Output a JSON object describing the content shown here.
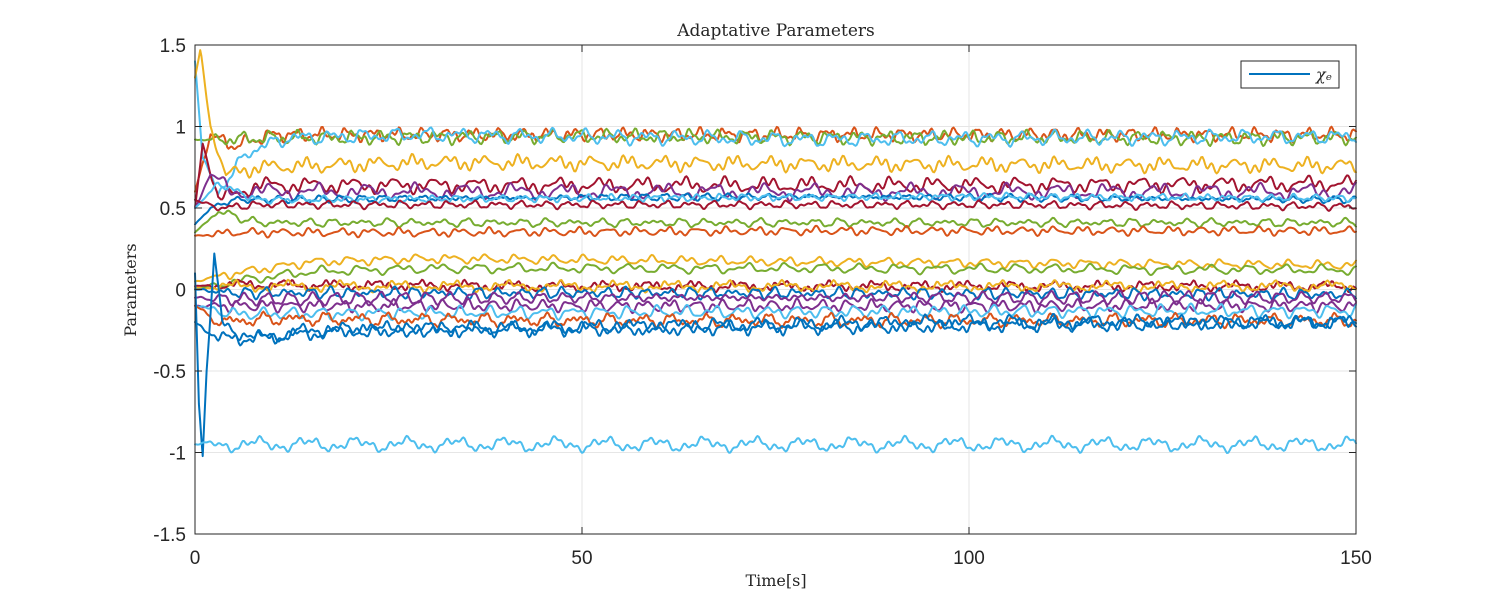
{
  "chart_data": {
    "type": "line",
    "title": "Adaptative Parameters",
    "xlabel": "Time[s]",
    "ylabel": "Parameters",
    "xlim": [
      0,
      150
    ],
    "ylim": [
      -1.5,
      1.5
    ],
    "xticks": [
      0,
      50,
      100,
      150
    ],
    "xtick_labels": [
      "0",
      "50",
      "100",
      "150"
    ],
    "yticks": [
      -1.5,
      -1,
      -0.5,
      0,
      0.5,
      1,
      1.5
    ],
    "ytick_labels": [
      "-1.5",
      "-1",
      "-0.5",
      "0",
      "0.5",
      "1",
      "1.5"
    ],
    "grid": true,
    "legend": {
      "placement": "top-right",
      "entries": [
        {
          "label": "χₑ",
          "color": "#0072BD"
        }
      ]
    },
    "series": [
      {
        "color": "#D95319",
        "values": [
          [
            0,
            0.6
          ],
          [
            2,
            0.95
          ],
          [
            5,
            0.88
          ],
          [
            10,
            0.95
          ],
          [
            20,
            0.95
          ],
          [
            50,
            0.95
          ],
          [
            80,
            0.95
          ],
          [
            100,
            0.95
          ],
          [
            130,
            0.95
          ],
          [
            150,
            0.95
          ]
        ]
      },
      {
        "color": "#77AC30",
        "values": [
          [
            0,
            0.92
          ],
          [
            3,
            0.92
          ],
          [
            10,
            0.93
          ],
          [
            50,
            0.94
          ],
          [
            100,
            0.93
          ],
          [
            150,
            0.93
          ]
        ]
      },
      {
        "color": "#4DBEEE",
        "values": [
          [
            0,
            1.4
          ],
          [
            1,
            0.8
          ],
          [
            3,
            0.6
          ],
          [
            7,
            0.85
          ],
          [
            12,
            0.93
          ],
          [
            30,
            0.95
          ],
          [
            80,
            0.92
          ],
          [
            150,
            0.94
          ]
        ]
      },
      {
        "color": "#EDB120",
        "values": [
          [
            0,
            1.3
          ],
          [
            0.7,
            1.47
          ],
          [
            2,
            1.0
          ],
          [
            4,
            0.7
          ],
          [
            8,
            0.75
          ],
          [
            30,
            0.78
          ],
          [
            80,
            0.77
          ],
          [
            150,
            0.76
          ]
        ]
      },
      {
        "color": "#A2142F",
        "values": [
          [
            0,
            0.5
          ],
          [
            1,
            0.9
          ],
          [
            3,
            0.55
          ],
          [
            8,
            0.64
          ],
          [
            50,
            0.64
          ],
          [
            100,
            0.64
          ],
          [
            150,
            0.65
          ]
        ]
      },
      {
        "color": "#7E2F8E",
        "values": [
          [
            0,
            0.5
          ],
          [
            2,
            0.7
          ],
          [
            5,
            0.6
          ],
          [
            10,
            0.6
          ],
          [
            50,
            0.6
          ],
          [
            100,
            0.6
          ],
          [
            150,
            0.6
          ]
        ]
      },
      {
        "color": "#0072BD",
        "values": [
          [
            0,
            0.4
          ],
          [
            2,
            0.5
          ],
          [
            5,
            0.55
          ],
          [
            30,
            0.56
          ],
          [
            80,
            0.57
          ],
          [
            150,
            0.55
          ]
        ]
      },
      {
        "color": "#4DBEEE",
        "values": [
          [
            0,
            0.5
          ],
          [
            3,
            0.65
          ],
          [
            8,
            0.55
          ],
          [
            50,
            0.56
          ],
          [
            100,
            0.57
          ],
          [
            150,
            0.56
          ]
        ]
      },
      {
        "color": "#A2142F",
        "values": [
          [
            0,
            0.55
          ],
          [
            3,
            0.5
          ],
          [
            8,
            0.52
          ],
          [
            50,
            0.52
          ],
          [
            100,
            0.52
          ],
          [
            150,
            0.51
          ]
        ]
      },
      {
        "color": "#77AC30",
        "values": [
          [
            0,
            0.35
          ],
          [
            3,
            0.48
          ],
          [
            8,
            0.41
          ],
          [
            50,
            0.41
          ],
          [
            100,
            0.41
          ],
          [
            150,
            0.41
          ]
        ]
      },
      {
        "color": "#D95319",
        "values": [
          [
            0,
            0.33
          ],
          [
            5,
            0.35
          ],
          [
            30,
            0.35
          ],
          [
            80,
            0.36
          ],
          [
            150,
            0.36
          ]
        ]
      },
      {
        "color": "#EDB120",
        "values": [
          [
            0,
            0.05
          ],
          [
            5,
            0.1
          ],
          [
            15,
            0.17
          ],
          [
            30,
            0.19
          ],
          [
            80,
            0.17
          ],
          [
            150,
            0.15
          ]
        ]
      },
      {
        "color": "#77AC30",
        "values": [
          [
            0,
            0.0
          ],
          [
            5,
            0.05
          ],
          [
            15,
            0.11
          ],
          [
            30,
            0.13
          ],
          [
            80,
            0.13
          ],
          [
            150,
            0.12
          ]
        ]
      },
      {
        "color": "#A2142F",
        "values": [
          [
            0,
            0.02
          ],
          [
            5,
            0.03
          ],
          [
            50,
            0.02
          ],
          [
            100,
            0.02
          ],
          [
            150,
            0.02
          ]
        ]
      },
      {
        "color": "#EDB120",
        "values": [
          [
            0,
            0.01
          ],
          [
            5,
            0.02
          ],
          [
            50,
            0.02
          ],
          [
            150,
            0.02
          ]
        ]
      },
      {
        "color": "#0072BD",
        "values": [
          [
            0,
            0.0
          ],
          [
            5,
            -0.02
          ],
          [
            50,
            -0.02
          ],
          [
            150,
            -0.03
          ]
        ]
      },
      {
        "color": "#7E2F8E",
        "values": [
          [
            0,
            -0.05
          ],
          [
            5,
            -0.06
          ],
          [
            50,
            -0.05
          ],
          [
            150,
            -0.05
          ]
        ]
      },
      {
        "color": "#7E2F8E",
        "values": [
          [
            0,
            -0.1
          ],
          [
            5,
            -0.1
          ],
          [
            50,
            -0.1
          ],
          [
            150,
            -0.1
          ]
        ]
      },
      {
        "color": "#4DBEEE",
        "values": [
          [
            0,
            -0.1
          ],
          [
            5,
            -0.15
          ],
          [
            50,
            -0.14
          ],
          [
            150,
            -0.13
          ]
        ]
      },
      {
        "color": "#D95319",
        "values": [
          [
            0,
            -0.1
          ],
          [
            3,
            -0.2
          ],
          [
            10,
            -0.18
          ],
          [
            50,
            -0.19
          ],
          [
            150,
            -0.19
          ]
        ]
      },
      {
        "color": "#0072BD",
        "values": [
          [
            0,
            -0.2
          ],
          [
            3,
            -0.3
          ],
          [
            8,
            -0.3
          ],
          [
            20,
            -0.25
          ],
          [
            60,
            -0.24
          ],
          [
            150,
            -0.2
          ]
        ]
      },
      {
        "color": "#0072BD",
        "values": [
          [
            0,
            0.1
          ],
          [
            0.5,
            -0.7
          ],
          [
            1,
            -1.02
          ],
          [
            1.5,
            -0.5
          ],
          [
            2.5,
            0.2
          ],
          [
            3.5,
            -0.2
          ],
          [
            5,
            -0.25
          ],
          [
            8,
            -0.3
          ],
          [
            15,
            -0.25
          ],
          [
            50,
            -0.23
          ],
          [
            100,
            -0.2
          ],
          [
            150,
            -0.2
          ]
        ]
      },
      {
        "color": "#4DBEEE",
        "values": [
          [
            0,
            -0.95
          ],
          [
            50,
            -0.95
          ],
          [
            100,
            -0.95
          ],
          [
            150,
            -0.95
          ]
        ]
      }
    ]
  }
}
